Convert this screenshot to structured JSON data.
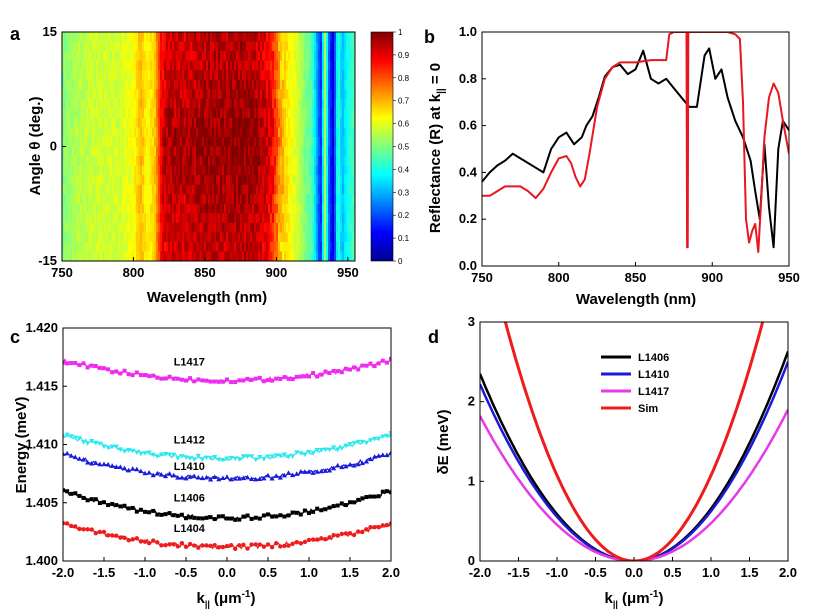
{
  "chart_data": [
    {
      "panel": "a",
      "type": "heatmap",
      "xlabel": "Wavelength (nm)",
      "ylabel": "Angle θ (deg.)",
      "xlim": [
        750,
        955
      ],
      "ylim": [
        -15,
        15
      ],
      "xticks": [
        "750",
        "800",
        "850",
        "900",
        "950"
      ],
      "yticks": [
        "15",
        "0",
        "-15"
      ],
      "colorbar": {
        "range": [
          0,
          1
        ],
        "ticks": [
          "1",
          "0.9",
          "0.8",
          "0.7",
          "0.6",
          "0.5",
          "0.4",
          "0.3",
          "0.2",
          "0.1",
          "0"
        ]
      },
      "profile_wavelength_nm": [
        750,
        760,
        775,
        790,
        800,
        805,
        810,
        815,
        820,
        825,
        835,
        845,
        855,
        865,
        875,
        885,
        893,
        898,
        903,
        910,
        915,
        920,
        925,
        928,
        931,
        934,
        937,
        940,
        943,
        946,
        950,
        955
      ],
      "profile_reflectance": [
        0.5,
        0.55,
        0.58,
        0.58,
        0.62,
        0.7,
        0.62,
        0.68,
        0.9,
        0.94,
        0.93,
        0.95,
        0.96,
        0.95,
        0.97,
        0.95,
        0.92,
        0.85,
        0.7,
        0.62,
        0.58,
        0.5,
        0.45,
        0.3,
        0.15,
        0.55,
        0.2,
        0.08,
        0.45,
        0.3,
        0.4,
        0.45
      ]
    },
    {
      "panel": "b",
      "type": "line",
      "xlabel": "Wavelength (nm)",
      "ylabel": "Reflectance (R) at k",
      "ylabel_sub": "||",
      "ylabel_tail": " = 0",
      "xlim": [
        750,
        950
      ],
      "ylim": [
        0.0,
        1.0
      ],
      "xticks": [
        "750",
        "800",
        "850",
        "900",
        "950"
      ],
      "yticks": [
        "0.0",
        "0.2",
        "0.4",
        "0.6",
        "0.8",
        "1.0"
      ],
      "series": [
        {
          "color": "#000000",
          "x": [
            750,
            755,
            760,
            765,
            770,
            775,
            780,
            785,
            790,
            795,
            800,
            805,
            810,
            815,
            818,
            822,
            826,
            830,
            835,
            840,
            845,
            850,
            855,
            860,
            865,
            870,
            875,
            880,
            885,
            890,
            895,
            898,
            902,
            906,
            910,
            915,
            920,
            925,
            928,
            931,
            934,
            937,
            940,
            943,
            946,
            950
          ],
          "y": [
            0.36,
            0.4,
            0.43,
            0.45,
            0.48,
            0.46,
            0.44,
            0.42,
            0.4,
            0.5,
            0.55,
            0.57,
            0.52,
            0.55,
            0.6,
            0.64,
            0.72,
            0.81,
            0.85,
            0.86,
            0.82,
            0.84,
            0.92,
            0.8,
            0.78,
            0.8,
            0.76,
            0.72,
            0.68,
            0.68,
            0.9,
            0.93,
            0.8,
            0.84,
            0.72,
            0.62,
            0.55,
            0.45,
            0.32,
            0.2,
            0.52,
            0.25,
            0.08,
            0.5,
            0.62,
            0.58
          ]
        },
        {
          "color": "#e8161e",
          "x": [
            750,
            755,
            760,
            765,
            770,
            775,
            780,
            785,
            790,
            795,
            800,
            805,
            808,
            811,
            814,
            817,
            820,
            825,
            830,
            835,
            840,
            850,
            860,
            870,
            872,
            875,
            880,
            883.2,
            883.6,
            884,
            884.4,
            884.8,
            890,
            900,
            910,
            915,
            918,
            920,
            922,
            924,
            926,
            928,
            930,
            932,
            934,
            937,
            940,
            943,
            946,
            950
          ],
          "y": [
            0.3,
            0.3,
            0.32,
            0.34,
            0.34,
            0.34,
            0.32,
            0.29,
            0.33,
            0.4,
            0.46,
            0.47,
            0.44,
            0.38,
            0.34,
            0.37,
            0.48,
            0.68,
            0.8,
            0.85,
            0.87,
            0.87,
            0.88,
            0.88,
            0.99,
            1.0,
            1.0,
            1.0,
            0.08,
            0.08,
            1.0,
            1.0,
            1.0,
            1.0,
            1.0,
            0.99,
            0.97,
            0.7,
            0.2,
            0.1,
            0.15,
            0.18,
            0.06,
            0.3,
            0.55,
            0.72,
            0.78,
            0.74,
            0.62,
            0.48
          ]
        }
      ]
    },
    {
      "panel": "c",
      "type": "line",
      "xlabel": "k",
      "xlabel_sub": "||",
      "xlabel_tail": " (μm",
      "xlabel_sup": "-1",
      "xlabel_end": ")",
      "ylabel": "Energy (meV)",
      "xlim": [
        -2.0,
        2.0
      ],
      "ylim": [
        1.4,
        1.42
      ],
      "xticks": [
        "-2.0",
        "-1.5",
        "-1.0",
        "-0.5",
        "0.0",
        "0.5",
        "1.0",
        "1.5",
        "2.0"
      ],
      "yticks": [
        "1.400",
        "1.405",
        "1.410",
        "1.415",
        "1.420"
      ],
      "series": [
        {
          "name": "L1417",
          "color": "#ef29ef",
          "marker": "square",
          "min": 1.4155,
          "edge": 1.4172,
          "label_x": -0.65,
          "label_y": 1.4168
        },
        {
          "name": "L1412",
          "color": "#2ee8f0",
          "marker": "triangle-down",
          "min": 1.4088,
          "edge": 1.4108,
          "label_x": -0.65,
          "label_y": 1.4101
        },
        {
          "name": "L1410",
          "color": "#1a1ad8",
          "marker": "triangle-up",
          "min": 1.4071,
          "edge": 1.4092,
          "label_x": -0.65,
          "label_y": 1.4078
        },
        {
          "name": "L1406",
          "color": "#000000",
          "marker": "square",
          "min": 1.4037,
          "edge": 1.406,
          "label_x": -0.65,
          "label_y": 1.4051
        },
        {
          "name": "L1404",
          "color": "#ee1c1c",
          "marker": "circle",
          "min": 1.4012,
          "edge": 1.4032,
          "label_x": -0.65,
          "label_y": 1.4025
        }
      ]
    },
    {
      "panel": "d",
      "type": "line",
      "xlabel": "k",
      "xlabel_sub": "||",
      "xlabel_tail": " (μm",
      "xlabel_sup": "-1",
      "xlabel_end": ")",
      "ylabel": "δE (meV)",
      "xlim": [
        -2.0,
        2.0
      ],
      "ylim": [
        0,
        3
      ],
      "xticks": [
        "-2.0",
        "-1.5",
        "-1.0",
        "-0.5",
        "0.0",
        "0.5",
        "1.0",
        "1.5",
        "2.0"
      ],
      "yticks": [
        "0",
        "1",
        "2",
        "3"
      ],
      "legend_position": "top-center",
      "series": [
        {
          "name": "L1406",
          "color": "#000000",
          "left_edge": 2.35,
          "right_edge": 2.63
        },
        {
          "name": "L1410",
          "color": "#1a1ad8",
          "left_edge": 2.22,
          "right_edge": 2.5
        },
        {
          "name": "L1417",
          "color": "#e63ae6",
          "left_edge": 1.82,
          "right_edge": 1.9
        },
        {
          "name": "Sim",
          "color": "#ee1c1c",
          "left_edge": 4.3,
          "right_edge": 4.3
        }
      ]
    }
  ]
}
